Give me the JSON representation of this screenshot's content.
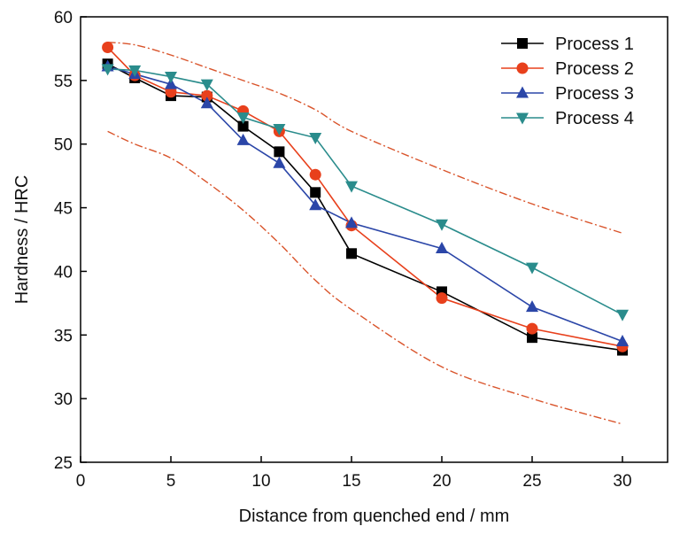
{
  "chart_data": {
    "type": "line",
    "xlabel": "Distance from quenched end / mm",
    "ylabel": "Hardness / HRC",
    "xlim": [
      0,
      32.5
    ],
    "ylim": [
      25,
      60
    ],
    "x_ticks": [
      0,
      5,
      10,
      15,
      20,
      25,
      30
    ],
    "y_ticks": [
      25,
      30,
      35,
      40,
      45,
      50,
      55,
      60
    ],
    "grid": false,
    "legend_position": "top-right",
    "x": [
      1.5,
      3,
      5,
      7,
      9,
      11,
      13,
      15,
      20,
      25,
      30
    ],
    "series": [
      {
        "name": "Process 1",
        "color": "#000000",
        "marker": "square",
        "values": [
          56.3,
          55.2,
          53.8,
          53.7,
          51.4,
          49.4,
          46.2,
          41.4,
          38.4,
          34.8,
          33.8
        ]
      },
      {
        "name": "Process 2",
        "color": "#e8401c",
        "marker": "circle",
        "values": [
          57.6,
          55.4,
          54.1,
          53.8,
          52.6,
          51.0,
          47.6,
          43.6,
          37.9,
          35.5,
          34.1
        ]
      },
      {
        "name": "Process 3",
        "color": "#2b46a8",
        "marker": "triangle-up",
        "values": [
          56.1,
          55.5,
          54.7,
          53.2,
          50.3,
          48.5,
          45.2,
          43.8,
          41.8,
          37.2,
          34.5
        ]
      },
      {
        "name": "Process 4",
        "color": "#2a8c8c",
        "marker": "triangle-down",
        "values": [
          55.9,
          55.8,
          55.3,
          54.7,
          52.1,
          51.2,
          50.5,
          46.7,
          43.7,
          40.3,
          36.6
        ]
      }
    ],
    "bands": [
      {
        "color": "#d9542b",
        "style": "dash-dot",
        "x": [
          1.5,
          3,
          5,
          7,
          9,
          11,
          13,
          15,
          20,
          25,
          30
        ],
        "values": [
          58.0,
          57.8,
          57.0,
          56.0,
          55.0,
          54.0,
          52.7,
          51.0,
          48.0,
          45.3,
          43.0
        ]
      },
      {
        "color": "#d9542b",
        "style": "dash-dot",
        "x": [
          1.5,
          3,
          5,
          7,
          9,
          11,
          13,
          15,
          20,
          25,
          30
        ],
        "values": [
          51.0,
          50.0,
          48.9,
          47.0,
          44.8,
          42.2,
          39.3,
          37.0,
          32.5,
          30.0,
          28.0
        ]
      }
    ]
  }
}
